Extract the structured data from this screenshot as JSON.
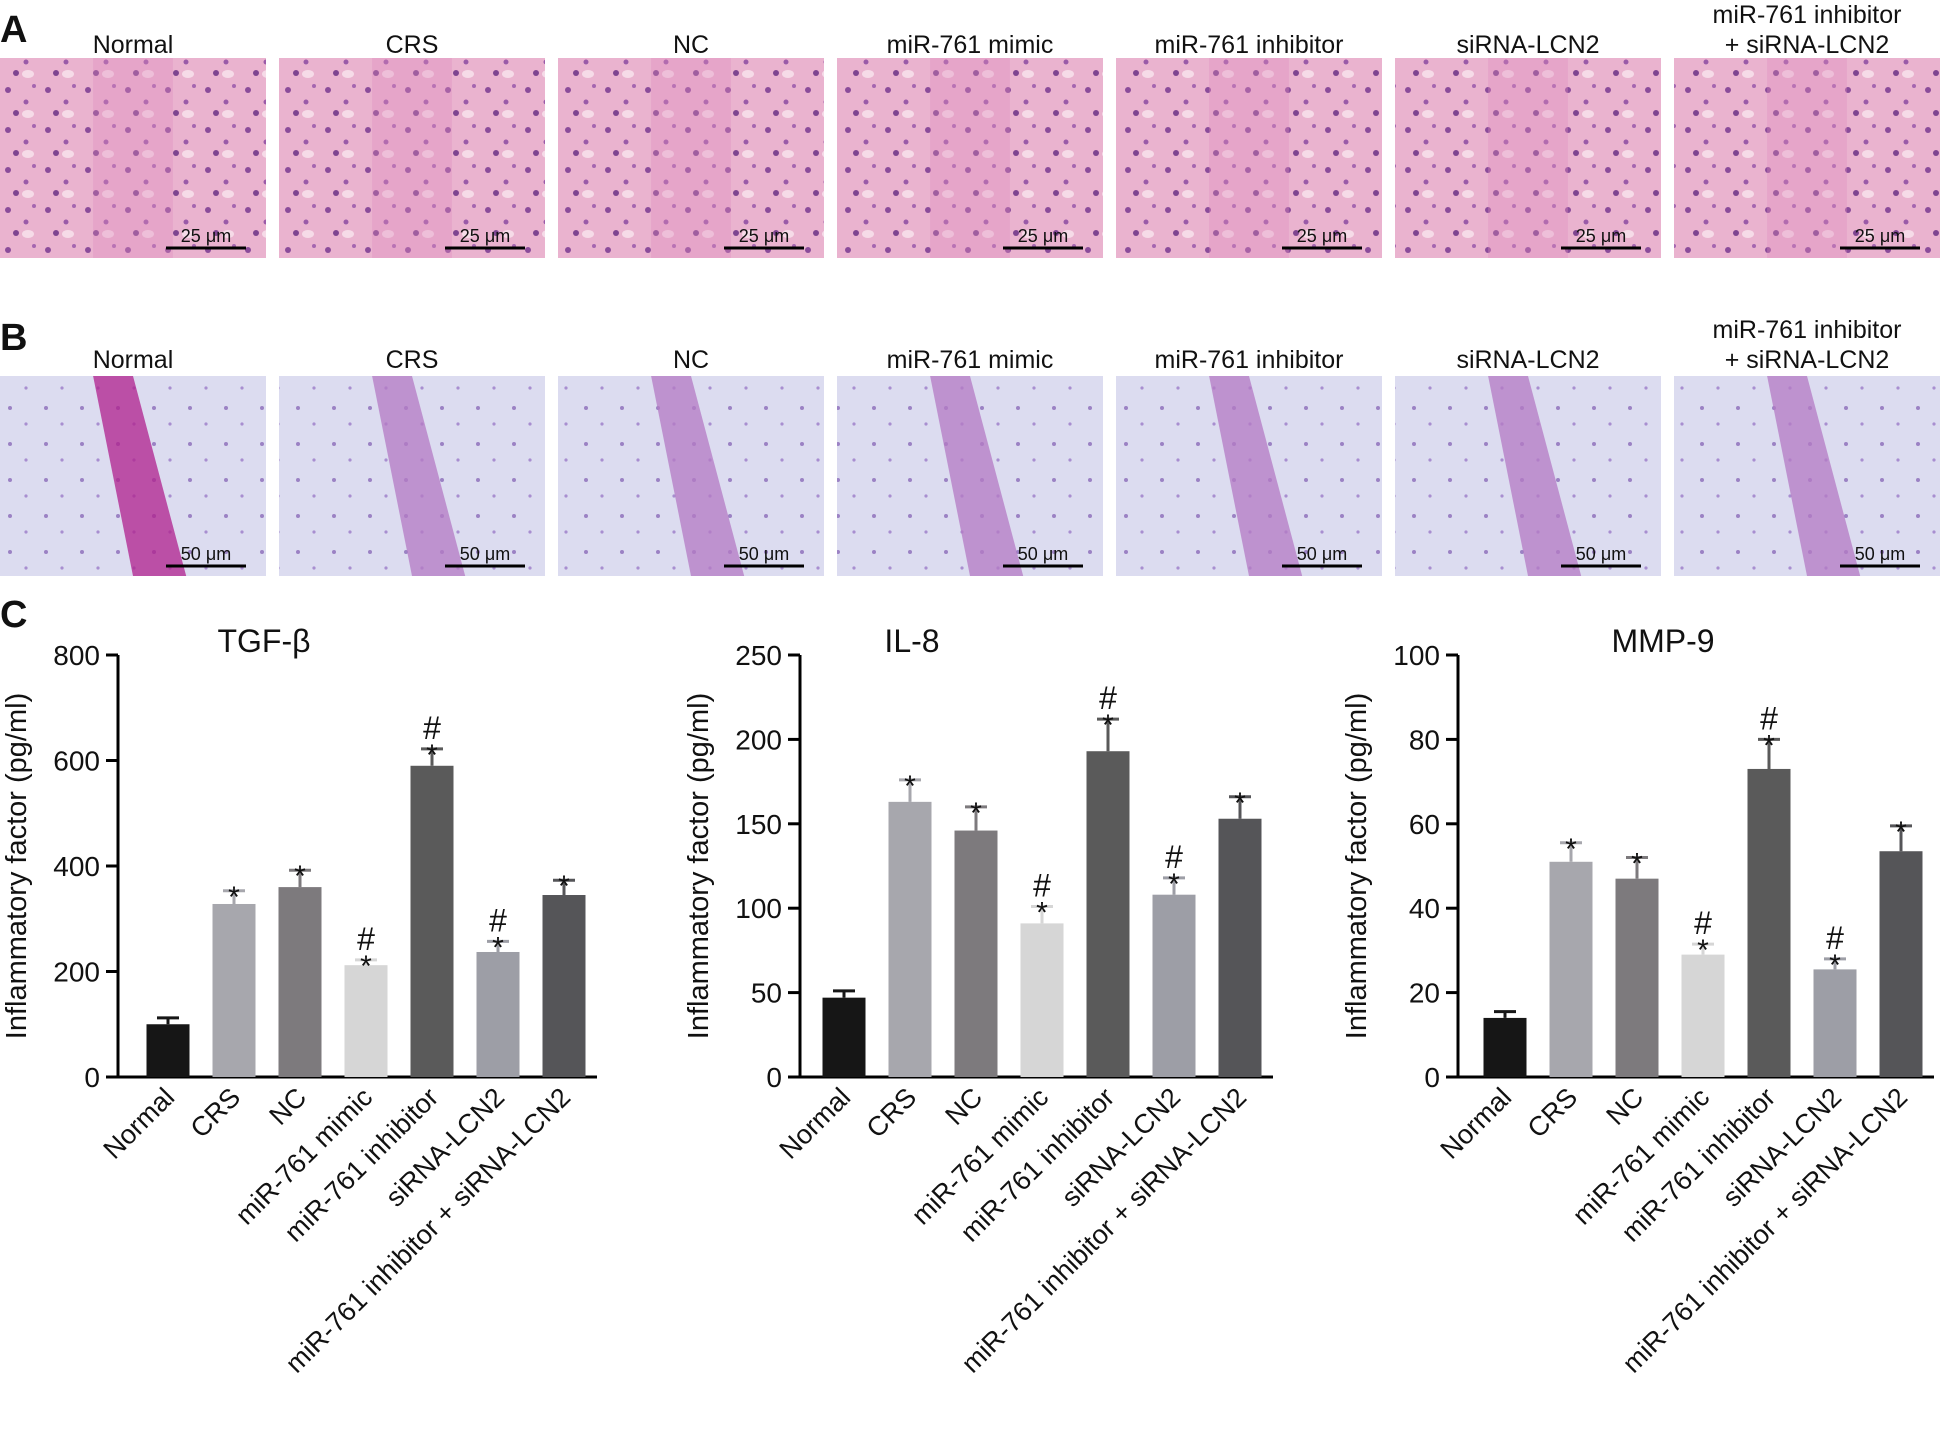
{
  "panel_labels": [
    "A",
    "B",
    "C"
  ],
  "histology": [
    {
      "titles": [
        "Normal",
        "CRS",
        "NC",
        "miR-761 mimic",
        "miR-761 inhibitor",
        "siRNA-LCN2",
        [
          "miR-761 inhibitor",
          "+ siRNA-LCN2"
        ]
      ],
      "scale_bar": "25 μm"
    },
    {
      "titles": [
        "Normal",
        "CRS",
        "NC",
        "miR-761 mimic",
        "miR-761 inhibitor",
        "siRNA-LCN2",
        [
          "miR-761 inhibitor",
          "+ siRNA-LCN2"
        ]
      ],
      "scale_bar": "50 μm"
    }
  ],
  "chart_data": [
    {
      "type": "bar",
      "title": "TGF-β",
      "ylabel": "Inflammatory factor (pg/ml)",
      "categories": [
        "Normal",
        "CRS",
        "NC",
        "miR-761 mimic",
        "miR-761 inhibitor",
        "siRNA-LCN2",
        "miR-761 inhibitor + siRNA-LCN2"
      ],
      "values": [
        100,
        328,
        360,
        212,
        590,
        237,
        345
      ],
      "errors": [
        12,
        25,
        32,
        10,
        32,
        20,
        28
      ],
      "colors": [
        "#161616",
        "#a7a7ad",
        "#7d7a7d",
        "#d6d6d6",
        "#5a5a5a",
        "#9d9ea6",
        "#555558"
      ],
      "markers": [
        null,
        [
          "*"
        ],
        [
          "*"
        ],
        [
          "*",
          "#"
        ],
        [
          "*",
          "#"
        ],
        [
          "*",
          "#"
        ],
        [
          "*"
        ]
      ],
      "ylim": [
        0,
        800
      ],
      "yticks": [
        0,
        200,
        400,
        600,
        800
      ]
    },
    {
      "type": "bar",
      "title": "IL-8",
      "ylabel": "Inflammatory factor (pg/ml)",
      "categories": [
        "Normal",
        "CRS",
        "NC",
        "miR-761 mimic",
        "miR-761 inhibitor",
        "siRNA-LCN2",
        "miR-761 inhibitor + siRNA-LCN2"
      ],
      "values": [
        47,
        163,
        146,
        91,
        193,
        108,
        153
      ],
      "errors": [
        4,
        13,
        14,
        10,
        19,
        10,
        13
      ],
      "colors": [
        "#161616",
        "#a7a7ad",
        "#7d7a7d",
        "#d6d6d6",
        "#5a5a5a",
        "#9d9ea6",
        "#555558"
      ],
      "markers": [
        null,
        [
          "*"
        ],
        [
          "*"
        ],
        [
          "*",
          "#"
        ],
        [
          "*",
          "#"
        ],
        [
          "*",
          "#"
        ],
        [
          "*"
        ]
      ],
      "ylim": [
        0,
        250
      ],
      "yticks": [
        0,
        50,
        100,
        150,
        200,
        250
      ]
    },
    {
      "type": "bar",
      "title": "MMP-9",
      "ylabel": "Inflammatory factor (pg/ml)",
      "categories": [
        "Normal",
        "CRS",
        "NC",
        "miR-761 mimic",
        "miR-761 inhibitor",
        "siRNA-LCN2",
        "miR-761 inhibitor + siRNA-LCN2"
      ],
      "values": [
        14,
        51,
        47,
        29,
        73,
        25.5,
        53.5
      ],
      "errors": [
        1.5,
        4.5,
        5,
        2.5,
        7,
        2.5,
        6
      ],
      "colors": [
        "#161616",
        "#a7a7ad",
        "#7d7a7d",
        "#d6d6d6",
        "#5a5a5a",
        "#9d9ea6",
        "#555558"
      ],
      "markers": [
        null,
        [
          "*"
        ],
        [
          "*"
        ],
        [
          "*",
          "#"
        ],
        [
          "*",
          "#"
        ],
        [
          "*",
          "#"
        ],
        [
          "*"
        ]
      ],
      "ylim": [
        0,
        100
      ],
      "yticks": [
        0,
        20,
        40,
        60,
        80,
        100
      ]
    }
  ]
}
